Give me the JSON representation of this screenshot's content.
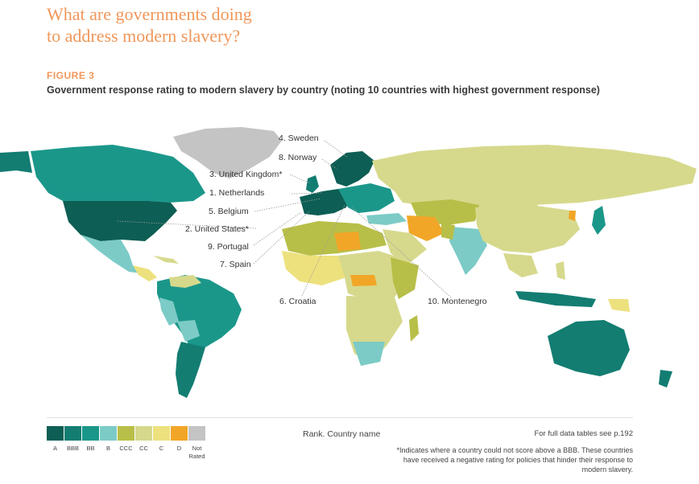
{
  "header": {
    "title_line1": "What are governments doing",
    "title_line2": "to address modern slavery?",
    "figure_label": "FIGURE 3",
    "subtitle": "Government response rating to modern slavery by country (noting 10 countries with highest government response)"
  },
  "map_labels": [
    {
      "text": "4. Sweden"
    },
    {
      "text": "8. Norway"
    },
    {
      "text": "3. United Kingdom*"
    },
    {
      "text": "1. Netherlands"
    },
    {
      "text": "5. Belgium"
    },
    {
      "text": "2. United States*"
    },
    {
      "text": "9. Portugal"
    },
    {
      "text": "7. Spain"
    },
    {
      "text": "6. Croatia"
    },
    {
      "text": "10. Montenegro"
    }
  ],
  "legend": {
    "items": [
      {
        "label": "A",
        "color": "#0d5e54"
      },
      {
        "label": "BBB",
        "color": "#137d72"
      },
      {
        "label": "BB",
        "color": "#1b978a"
      },
      {
        "label": "B",
        "color": "#7ccbc6"
      },
      {
        "label": "CCC",
        "color": "#b8bf48"
      },
      {
        "label": "CC",
        "color": "#d6d98c"
      },
      {
        "label": "C",
        "color": "#ede17e"
      },
      {
        "label": "D",
        "color": "#f2a627"
      },
      {
        "label": "Not Rated",
        "color": "#c4c4c4"
      }
    ],
    "rank_note": "Rank. Country name",
    "tables_note": "For full data tables see p.192",
    "asterisk_note": "*Indicates where a country could not score above a BBB. These countries have received a negative rating for policies that hinder their response to modern slavery."
  },
  "colors": {
    "title": "#f0975a",
    "A": "#0d5e54",
    "BBB": "#137d72",
    "BB": "#1b978a",
    "B": "#7ccbc6",
    "CCC": "#b8bf48",
    "CC": "#d6d98c",
    "C": "#ede17e",
    "D": "#f2a627",
    "not_rated": "#c4c4c4"
  }
}
